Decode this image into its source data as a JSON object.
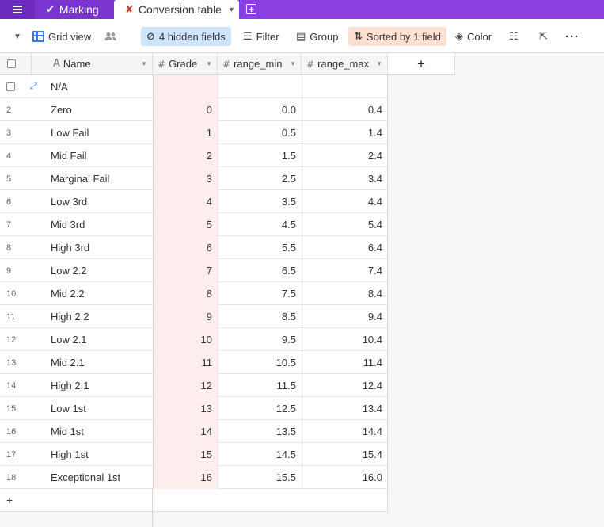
{
  "tabs": [
    {
      "label": "Marking",
      "icon": "check-icon"
    },
    {
      "label": "Conversion table",
      "icon": "x-icon",
      "active": true
    }
  ],
  "toolbar": {
    "view_name": "Grid view",
    "hidden_fields": "4 hidden fields",
    "filter": "Filter",
    "group": "Group",
    "sorted": "Sorted by 1 field",
    "color": "Color"
  },
  "columns": [
    {
      "label": "Name",
      "type": "text"
    },
    {
      "label": "Grade",
      "type": "number"
    },
    {
      "label": "range_min",
      "type": "number"
    },
    {
      "label": "range_max",
      "type": "number"
    }
  ],
  "rows": [
    {
      "num": "",
      "name": "N/A",
      "grade": "",
      "min": "",
      "max": ""
    },
    {
      "num": "2",
      "name": "Zero",
      "grade": "0",
      "min": "0.0",
      "max": "0.4"
    },
    {
      "num": "3",
      "name": "Low Fail",
      "grade": "1",
      "min": "0.5",
      "max": "1.4"
    },
    {
      "num": "4",
      "name": "Mid Fail",
      "grade": "2",
      "min": "1.5",
      "max": "2.4"
    },
    {
      "num": "5",
      "name": "Marginal Fail",
      "grade": "3",
      "min": "2.5",
      "max": "3.4"
    },
    {
      "num": "6",
      "name": "Low 3rd",
      "grade": "4",
      "min": "3.5",
      "max": "4.4"
    },
    {
      "num": "7",
      "name": "Mid 3rd",
      "grade": "5",
      "min": "4.5",
      "max": "5.4"
    },
    {
      "num": "8",
      "name": "High 3rd",
      "grade": "6",
      "min": "5.5",
      "max": "6.4"
    },
    {
      "num": "9",
      "name": "Low 2.2",
      "grade": "7",
      "min": "6.5",
      "max": "7.4"
    },
    {
      "num": "10",
      "name": "Mid 2.2",
      "grade": "8",
      "min": "7.5",
      "max": "8.4"
    },
    {
      "num": "11",
      "name": "High 2.2",
      "grade": "9",
      "min": "8.5",
      "max": "9.4"
    },
    {
      "num": "12",
      "name": "Low 2.1",
      "grade": "10",
      "min": "9.5",
      "max": "10.4"
    },
    {
      "num": "13",
      "name": "Mid 2.1",
      "grade": "11",
      "min": "10.5",
      "max": "11.4"
    },
    {
      "num": "14",
      "name": "High 2.1",
      "grade": "12",
      "min": "11.5",
      "max": "12.4"
    },
    {
      "num": "15",
      "name": "Low 1st",
      "grade": "13",
      "min": "12.5",
      "max": "13.4"
    },
    {
      "num": "16",
      "name": "Mid 1st",
      "grade": "14",
      "min": "13.5",
      "max": "14.4"
    },
    {
      "num": "17",
      "name": "High 1st",
      "grade": "15",
      "min": "14.5",
      "max": "15.4"
    },
    {
      "num": "18",
      "name": "Exceptional 1st",
      "grade": "16",
      "min": "15.5",
      "max": "16.0"
    }
  ],
  "add_row": "+",
  "add_column": "+",
  "colors": {
    "tabbar": "#8b3fe0",
    "grade_cell": "#fdeeed",
    "hidden_fields_bg": "#cde4fb",
    "sorted_bg": "#fde0d2",
    "accent_blue": "#2d7ff9"
  }
}
